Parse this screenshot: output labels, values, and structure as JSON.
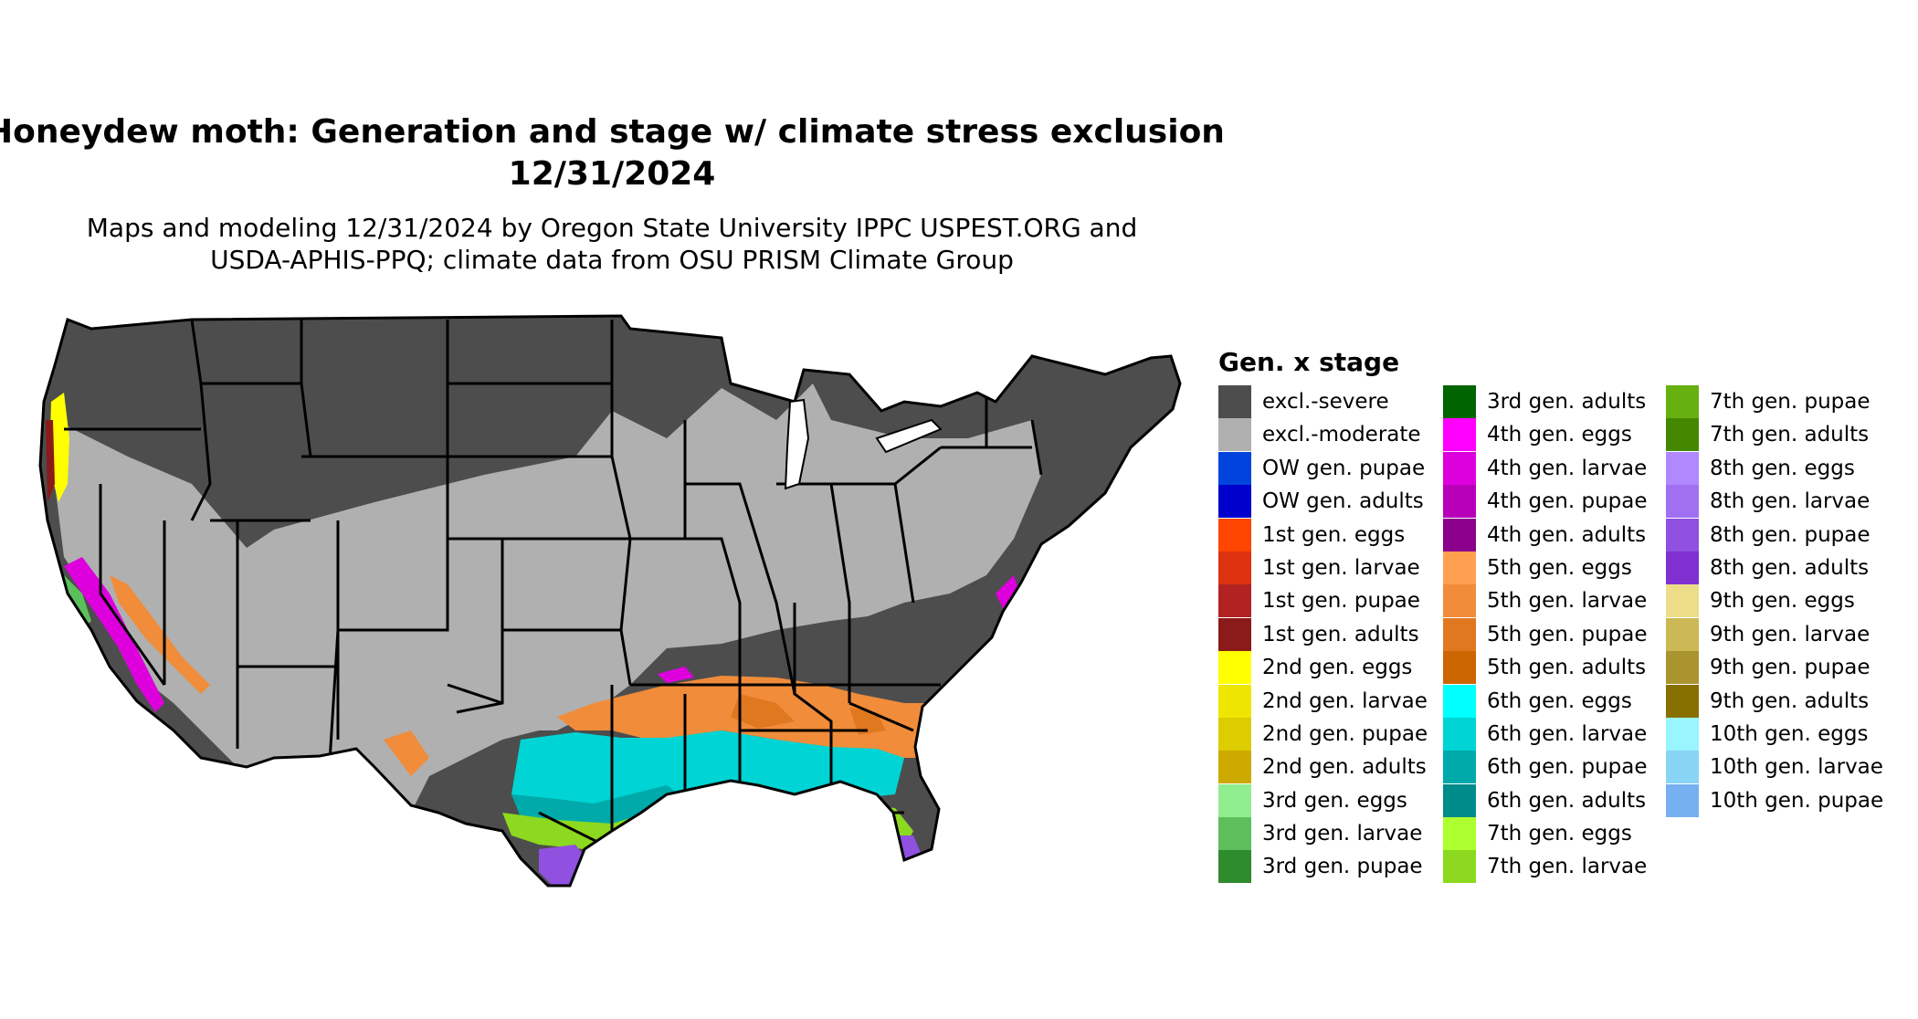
{
  "title": {
    "line1": "Honeydew moth: Generation and stage w/ climate stress exclusion",
    "line2": "12/31/2024"
  },
  "subtitle": {
    "line1": "Maps and modeling 12/31/2024 by Oregon State University IPPC USPEST.ORG and",
    "line2": "USDA-APHIS-PPQ; climate data from OSU PRISM Climate Group"
  },
  "legend": {
    "title": "Gen. x stage",
    "columns": [
      [
        {
          "label": "excl.-severe",
          "color": "#4d4d4d"
        },
        {
          "label": "excl.-moderate",
          "color": "#b0b0b0"
        },
        {
          "label": "OW gen. pupae",
          "color": "#0044dd"
        },
        {
          "label": "OW gen. adults",
          "color": "#0000cc"
        },
        {
          "label": "1st gen. eggs",
          "color": "#ff4500"
        },
        {
          "label": "1st gen. larvae",
          "color": "#dd3311"
        },
        {
          "label": "1st gen. pupae",
          "color": "#b22222"
        },
        {
          "label": "1st gen. adults",
          "color": "#8b1a1a"
        },
        {
          "label": "2nd gen. eggs",
          "color": "#ffff00"
        },
        {
          "label": "2nd gen. larvae",
          "color": "#eee600"
        },
        {
          "label": "2nd gen. pupae",
          "color": "#ddcc00"
        },
        {
          "label": "2nd gen. adults",
          "color": "#ccaa00"
        },
        {
          "label": "3rd gen. eggs",
          "color": "#90ee90"
        },
        {
          "label": "3rd gen. larvae",
          "color": "#5cbf5c"
        },
        {
          "label": "3rd gen. pupae",
          "color": "#2e8b2e"
        }
      ],
      [
        {
          "label": "3rd gen. adults",
          "color": "#006400"
        },
        {
          "label": "4th gen. eggs",
          "color": "#ff00ff"
        },
        {
          "label": "4th gen. larvae",
          "color": "#dd00dd"
        },
        {
          "label": "4th gen. pupae",
          "color": "#b800b8"
        },
        {
          "label": "4th gen. adults",
          "color": "#8b008b"
        },
        {
          "label": "5th gen. eggs",
          "color": "#ffa050"
        },
        {
          "label": "5th gen. larvae",
          "color": "#f08c3a"
        },
        {
          "label": "5th gen. pupae",
          "color": "#e07820"
        },
        {
          "label": "5th gen. adults",
          "color": "#cc6600"
        },
        {
          "label": "6th gen. eggs",
          "color": "#00ffff"
        },
        {
          "label": "6th gen. larvae",
          "color": "#00d4d4"
        },
        {
          "label": "6th gen. pupae",
          "color": "#00aaaa"
        },
        {
          "label": "6th gen. adults",
          "color": "#008b8b"
        },
        {
          "label": "7th gen. eggs",
          "color": "#adff2f"
        },
        {
          "label": "7th gen. larvae",
          "color": "#8cd91f"
        }
      ],
      [
        {
          "label": "7th gen. pupae",
          "color": "#66b010"
        },
        {
          "label": "7th gen. adults",
          "color": "#448800"
        },
        {
          "label": "8th gen. eggs",
          "color": "#b088ff"
        },
        {
          "label": "8th gen. larvae",
          "color": "#a070f0"
        },
        {
          "label": "8th gen. pupae",
          "color": "#9050e0"
        },
        {
          "label": "8th gen. adults",
          "color": "#8030d0"
        },
        {
          "label": "9th gen. eggs",
          "color": "#eedd88"
        },
        {
          "label": "9th gen. larvae",
          "color": "#ccb855"
        },
        {
          "label": "9th gen. pupae",
          "color": "#aa9430"
        },
        {
          "label": "9th gen. adults",
          "color": "#887000"
        },
        {
          "label": "10th gen. eggs",
          "color": "#99f5ff"
        },
        {
          "label": "10th gen. larvae",
          "color": "#88d4f5"
        },
        {
          "label": "10th gen. pupae",
          "color": "#77b0f0"
        }
      ]
    ]
  }
}
